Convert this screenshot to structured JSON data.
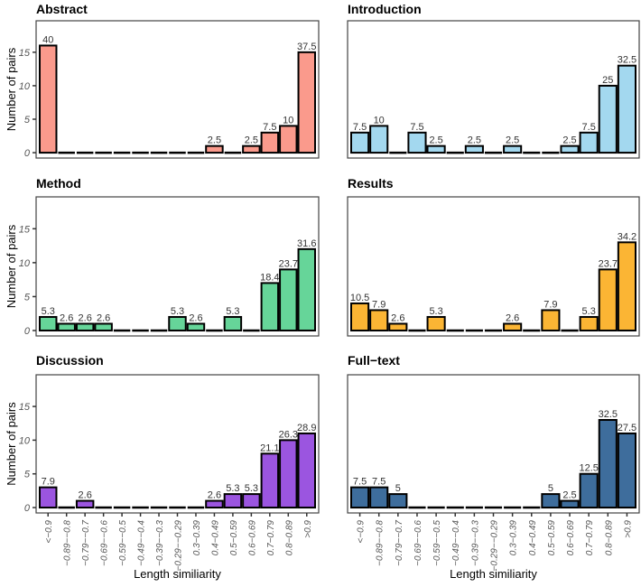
{
  "chart_data": {
    "type": "bar",
    "layout": "facet 3x2",
    "xlabel": "Length similiarity",
    "ylabel": "Number of pairs",
    "ylim": [
      -0.8,
      19.7
    ],
    "yticks": [
      "0",
      "5",
      "10",
      "15"
    ],
    "categories": [
      "<−0.9",
      "−0.89−−0.8",
      "−0.79−−0.7",
      "−0.69−−0.6",
      "−0.59−−0.5",
      "−0.49−−0.4",
      "−0.39−−0.3",
      "−0.29−−0.29",
      "0.3−0.39",
      "0.4−0.49",
      "0.5−0.59",
      "0.6−0.69",
      "0.7−0.79",
      "0.8−0.89",
      ">0.9"
    ],
    "panels": [
      {
        "title": "Abstract",
        "color": "#fa9a8c",
        "values": [
          16,
          0,
          0,
          0,
          0,
          0,
          0,
          0,
          0,
          1,
          0,
          1,
          3,
          4,
          15
        ],
        "labels": [
          "40",
          "",
          "",
          "",
          "",
          "",
          "",
          "",
          "",
          "2.5",
          "",
          "2.5",
          "7.5",
          "10",
          "37.5"
        ]
      },
      {
        "title": "Introduction",
        "color": "#a3d8ef",
        "values": [
          3,
          4,
          0,
          3,
          1,
          0,
          1,
          0,
          1,
          0,
          0,
          1,
          3,
          10,
          13
        ],
        "labels": [
          "7.5",
          "10",
          "",
          "7.5",
          "2.5",
          "",
          "2.5",
          "",
          "2.5",
          "",
          "",
          "2.5",
          "7.5",
          "25",
          "32.5"
        ]
      },
      {
        "title": "Method",
        "color": "#66d599",
        "values": [
          2,
          1,
          1,
          1,
          0,
          0,
          0,
          2,
          1,
          0,
          2,
          0,
          7,
          9,
          12
        ],
        "labels": [
          "5.3",
          "2.6",
          "2.6",
          "2.6",
          "",
          "",
          "",
          "5.3",
          "2.6",
          "",
          "5.3",
          "",
          "18.4",
          "23.7",
          "31.6"
        ]
      },
      {
        "title": "Results",
        "color": "#fbb534",
        "values": [
          4,
          3,
          1,
          0,
          2,
          0,
          0,
          0,
          1,
          0,
          3,
          0,
          2,
          9,
          13
        ],
        "labels": [
          "10.5",
          "7.9",
          "2.6",
          "",
          "5.3",
          "",
          "",
          "",
          "2.6",
          "",
          "7.9",
          "",
          "5.3",
          "23.7",
          "34.2"
        ]
      },
      {
        "title": "Discussion",
        "color": "#9b55e0",
        "values": [
          3,
          0,
          1,
          0,
          0,
          0,
          0,
          0,
          0,
          1,
          2,
          2,
          8,
          10,
          11
        ],
        "labels": [
          "7.9",
          "",
          "2.6",
          "",
          "",
          "",
          "",
          "",
          "",
          "2.6",
          "5.3",
          "5.3",
          "21.1",
          "26.3",
          "28.9"
        ]
      },
      {
        "title": "Full−text",
        "color": "#3e6d9c",
        "values": [
          3,
          3,
          2,
          0,
          0,
          0,
          0,
          0,
          0,
          0,
          2,
          1,
          5,
          13,
          11
        ],
        "labels": [
          "7.5",
          "7.5",
          "5",
          "",
          "",
          "",
          "",
          "",
          "",
          "",
          "5",
          "2.5",
          "12.5",
          "32.5",
          "27.5"
        ]
      }
    ]
  }
}
